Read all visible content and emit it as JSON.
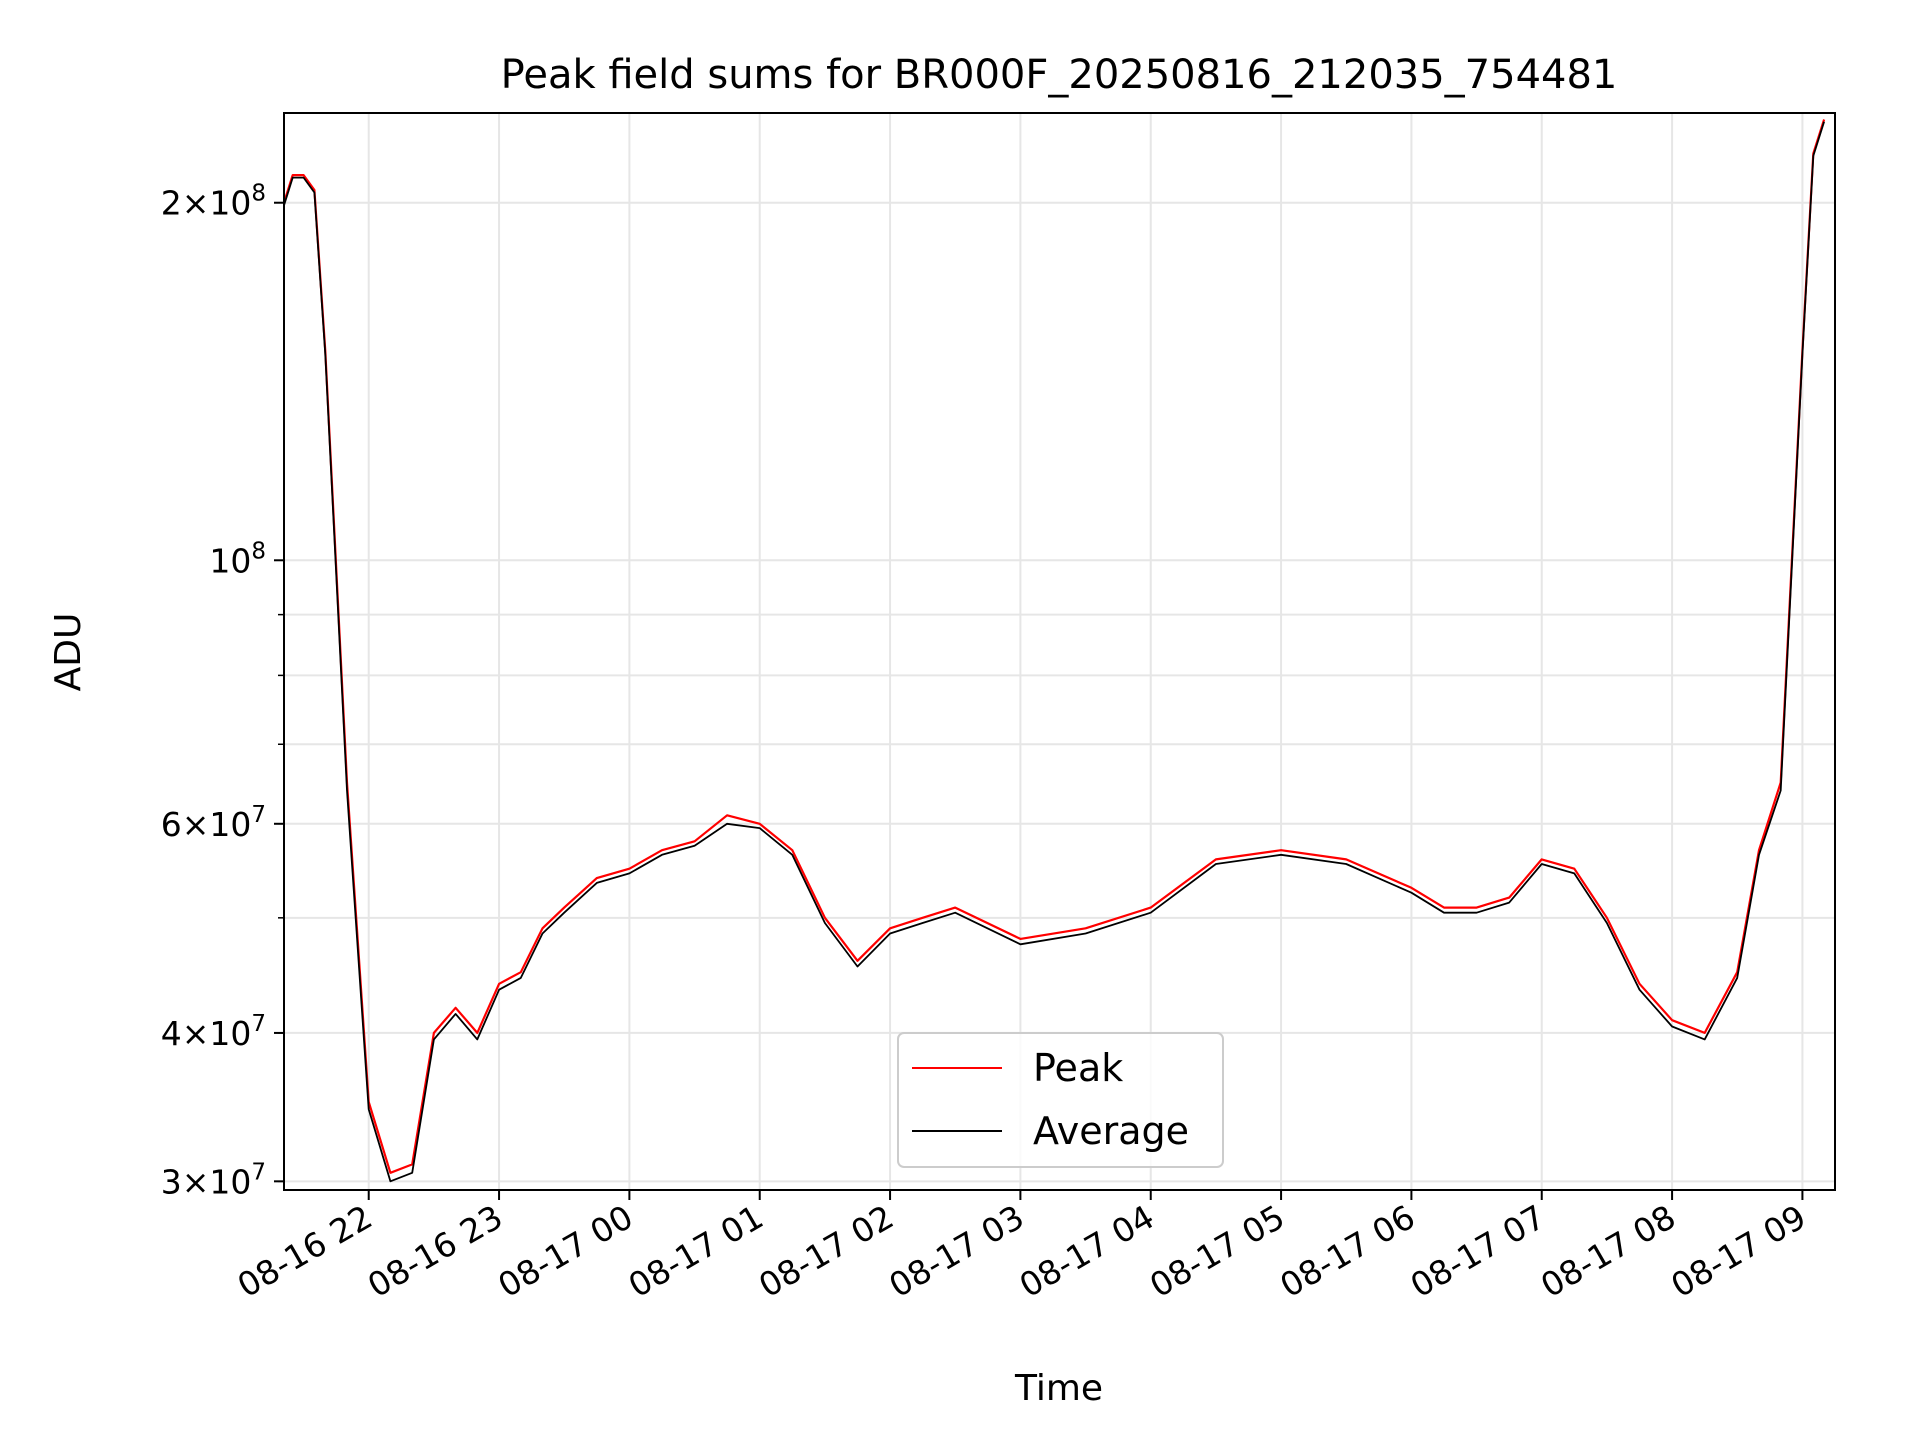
{
  "chart_data": {
    "type": "line",
    "title": "Peak field sums for BR000F_20250816_212035_754481",
    "xlabel": "Time",
    "ylabel": "ADU",
    "yscale": "log",
    "ylim": [
      29500000,
      238000000
    ],
    "xlim": [
      "08-16 21:21",
      "08-17 09:15"
    ],
    "grid": true,
    "legend_position": "bottom-center",
    "x_ticks": [
      "08-16 22",
      "08-16 23",
      "08-17 00",
      "08-17 01",
      "08-17 02",
      "08-17 03",
      "08-17 04",
      "08-17 05",
      "08-17 06",
      "08-17 07",
      "08-17 08",
      "08-17 09"
    ],
    "y_ticks": [
      {
        "value": 30000000,
        "mantissa": "3",
        "exponent": "7"
      },
      {
        "value": 40000000,
        "mantissa": "4",
        "exponent": "7"
      },
      {
        "value": 60000000,
        "mantissa": "6",
        "exponent": "7"
      },
      {
        "value": 100000000,
        "mantissa": "",
        "exponent": "8"
      },
      {
        "value": 200000000,
        "mantissa": "2",
        "exponent": "8"
      }
    ],
    "x": [
      "08-16 21:21",
      "08-16 21:25",
      "08-16 21:30",
      "08-16 21:35",
      "08-16 21:40",
      "08-16 21:50",
      "08-16 22:00",
      "08-16 22:10",
      "08-16 22:20",
      "08-16 22:30",
      "08-16 22:40",
      "08-16 22:50",
      "08-16 23:00",
      "08-16 23:10",
      "08-16 23:20",
      "08-16 23:30",
      "08-16 23:45",
      "08-17 00:00",
      "08-17 00:15",
      "08-17 00:30",
      "08-17 00:45",
      "08-17 01:00",
      "08-17 01:15",
      "08-17 01:30",
      "08-17 01:45",
      "08-17 02:00",
      "08-17 02:15",
      "08-17 02:30",
      "08-17 03:00",
      "08-17 03:30",
      "08-17 04:00",
      "08-17 04:30",
      "08-17 05:00",
      "08-17 05:30",
      "08-17 06:00",
      "08-17 06:15",
      "08-17 06:30",
      "08-17 06:45",
      "08-17 07:00",
      "08-17 07:15",
      "08-17 07:30",
      "08-17 07:45",
      "08-17 08:00",
      "08-17 08:15",
      "08-17 08:30",
      "08-17 08:40",
      "08-17 08:50",
      "08-17 09:00",
      "08-17 09:05",
      "08-17 09:10"
    ],
    "series": [
      {
        "name": "Peak",
        "color": "#ff0000",
        "values": [
          200000000,
          211000000,
          211000000,
          205000000,
          150000000,
          65000000,
          35000000,
          30500000,
          31000000,
          40000000,
          42000000,
          40000000,
          44000000,
          45000000,
          49000000,
          51000000,
          54000000,
          55000000,
          57000000,
          58000000,
          61000000,
          60000000,
          57000000,
          50000000,
          46000000,
          49000000,
          50000000,
          51000000,
          48000000,
          49000000,
          51000000,
          56000000,
          57000000,
          56000000,
          53000000,
          51000000,
          51000000,
          52000000,
          56000000,
          55000000,
          50000000,
          44000000,
          41000000,
          40000000,
          45000000,
          57000000,
          65000000,
          150000000,
          220000000,
          235000000
        ]
      },
      {
        "name": "Average",
        "color": "#000000",
        "values": [
          199000000,
          210000000,
          210000000,
          204000000,
          149000000,
          64000000,
          34500000,
          30000000,
          30500000,
          39500000,
          41500000,
          39500000,
          43500000,
          44500000,
          48500000,
          50500000,
          53500000,
          54500000,
          56500000,
          57500000,
          60000000,
          59500000,
          56500000,
          49500000,
          45500000,
          48500000,
          49500000,
          50500000,
          47500000,
          48500000,
          50500000,
          55500000,
          56500000,
          55500000,
          52500000,
          50500000,
          50500000,
          51500000,
          55500000,
          54500000,
          49500000,
          43500000,
          40500000,
          39500000,
          44500000,
          56500000,
          64000000,
          149000000,
          219000000,
          234000000
        ]
      }
    ]
  }
}
